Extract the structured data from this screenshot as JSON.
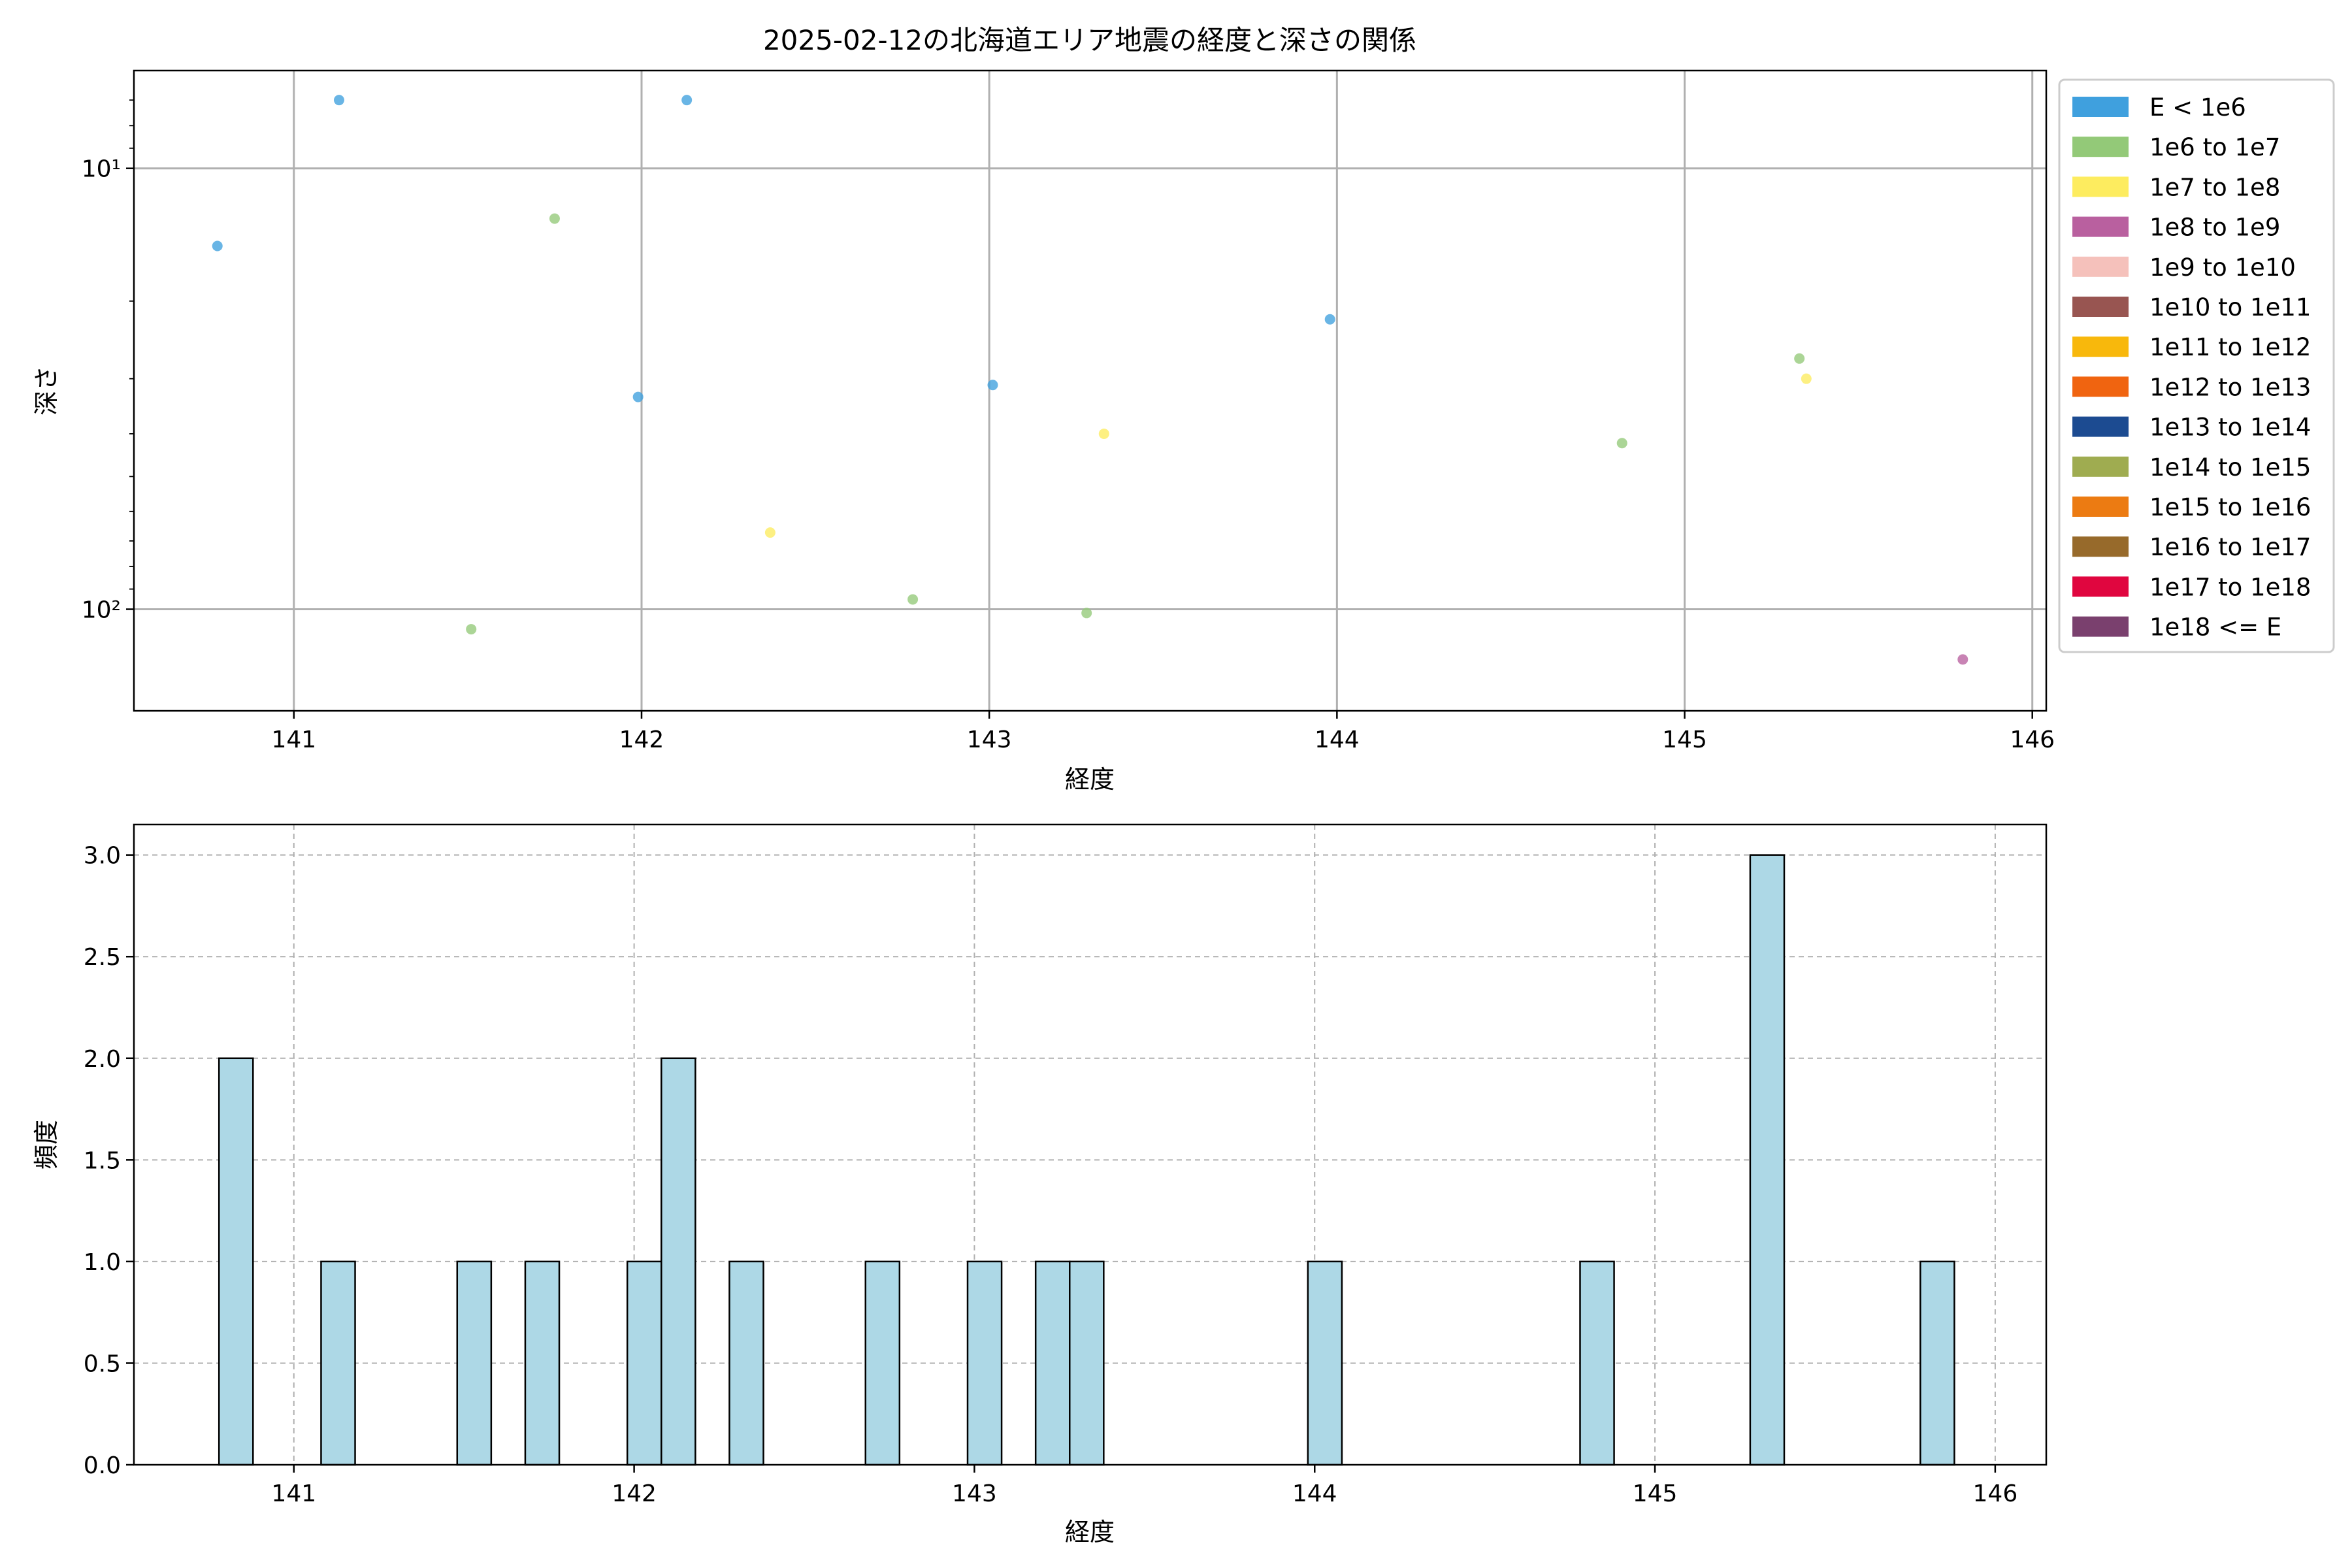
{
  "chart_data": [
    {
      "type": "scatter",
      "title": "2025-02-12の北海道エリア地震の経度と深さの関係",
      "xlabel": "経度",
      "ylabel": "深さ",
      "xlim": [
        140.54,
        146.04
      ],
      "ylim": [
        170,
        6
      ],
      "yscale": "log",
      "y_inverted": true,
      "x_ticks": [
        141,
        142,
        143,
        144,
        145,
        146
      ],
      "y_ticks": [
        {
          "value": 10,
          "label": "10¹"
        },
        {
          "value": 100,
          "label": "10²"
        }
      ],
      "grid": true,
      "legend_position": "outside-right",
      "legend": [
        {
          "label": "E < 1e6",
          "color": "#3fa0de"
        },
        {
          "label": "1e6 to 1e7",
          "color": "#93c978"
        },
        {
          "label": "1e7 to 1e8",
          "color": "#fdec5f"
        },
        {
          "label": "1e8 to 1e9",
          "color": "#b9609f"
        },
        {
          "label": "1e9 to 1e10",
          "color": "#f5c1bb"
        },
        {
          "label": "1e10 to 1e11",
          "color": "#985551"
        },
        {
          "label": "1e11 to 1e12",
          "color": "#f8b80c"
        },
        {
          "label": "1e12 to 1e13",
          "color": "#f06410"
        },
        {
          "label": "1e13 to 1e14",
          "color": "#1c4b91"
        },
        {
          "label": "1e14 to 1e15",
          "color": "#9fac50"
        },
        {
          "label": "1e15 to 1e16",
          "color": "#ec7b12"
        },
        {
          "label": "1e16 to 1e17",
          "color": "#976a2b"
        },
        {
          "label": "1e17 to 1e18",
          "color": "#e0063f"
        },
        {
          "label": "1e18 <= E",
          "color": "#7a406e"
        }
      ],
      "points": [
        {
          "x": 140.78,
          "y": 15,
          "c": 0
        },
        {
          "x": 141.13,
          "y": 7,
          "c": 0
        },
        {
          "x": 142.13,
          "y": 7,
          "c": 0
        },
        {
          "x": 141.99,
          "y": 33,
          "c": 0
        },
        {
          "x": 143.01,
          "y": 31,
          "c": 0
        },
        {
          "x": 143.98,
          "y": 22,
          "c": 0
        },
        {
          "x": 141.75,
          "y": 13,
          "c": 1
        },
        {
          "x": 141.51,
          "y": 111,
          "c": 1
        },
        {
          "x": 142.78,
          "y": 95,
          "c": 1
        },
        {
          "x": 143.28,
          "y": 102,
          "c": 1
        },
        {
          "x": 144.82,
          "y": 42,
          "c": 1
        },
        {
          "x": 145.33,
          "y": 27,
          "c": 1
        },
        {
          "x": 142.37,
          "y": 67,
          "c": 2
        },
        {
          "x": 143.33,
          "y": 40,
          "c": 2
        },
        {
          "x": 145.35,
          "y": 30,
          "c": 2
        },
        {
          "x": 145.8,
          "y": 130,
          "c": 3
        }
      ]
    },
    {
      "type": "bar",
      "xlabel": "経度",
      "ylabel": "頻度",
      "xlim": [
        140.53,
        146.15
      ],
      "ylim": [
        0,
        3.15
      ],
      "x_ticks": [
        141,
        142,
        143,
        144,
        145,
        146
      ],
      "y_ticks": [
        0.0,
        0.5,
        1.0,
        1.5,
        2.0,
        2.5,
        3.0
      ],
      "y_tick_labels": [
        "0.0",
        "0.5",
        "1.0",
        "1.5",
        "2.0",
        "2.5",
        "3.0"
      ],
      "grid": true,
      "bin_width": 0.1,
      "bar_color": "#add8e6",
      "bins": [
        {
          "start": 140.78,
          "count": 2
        },
        {
          "start": 141.08,
          "count": 1
        },
        {
          "start": 141.48,
          "count": 1
        },
        {
          "start": 141.68,
          "count": 1
        },
        {
          "start": 141.98,
          "count": 1
        },
        {
          "start": 142.08,
          "count": 2
        },
        {
          "start": 142.28,
          "count": 1
        },
        {
          "start": 142.68,
          "count": 1
        },
        {
          "start": 142.98,
          "count": 1
        },
        {
          "start": 143.18,
          "count": 1
        },
        {
          "start": 143.28,
          "count": 1
        },
        {
          "start": 143.98,
          "count": 1
        },
        {
          "start": 144.78,
          "count": 1
        },
        {
          "start": 145.28,
          "count": 3
        },
        {
          "start": 145.78,
          "count": 1
        }
      ]
    }
  ]
}
